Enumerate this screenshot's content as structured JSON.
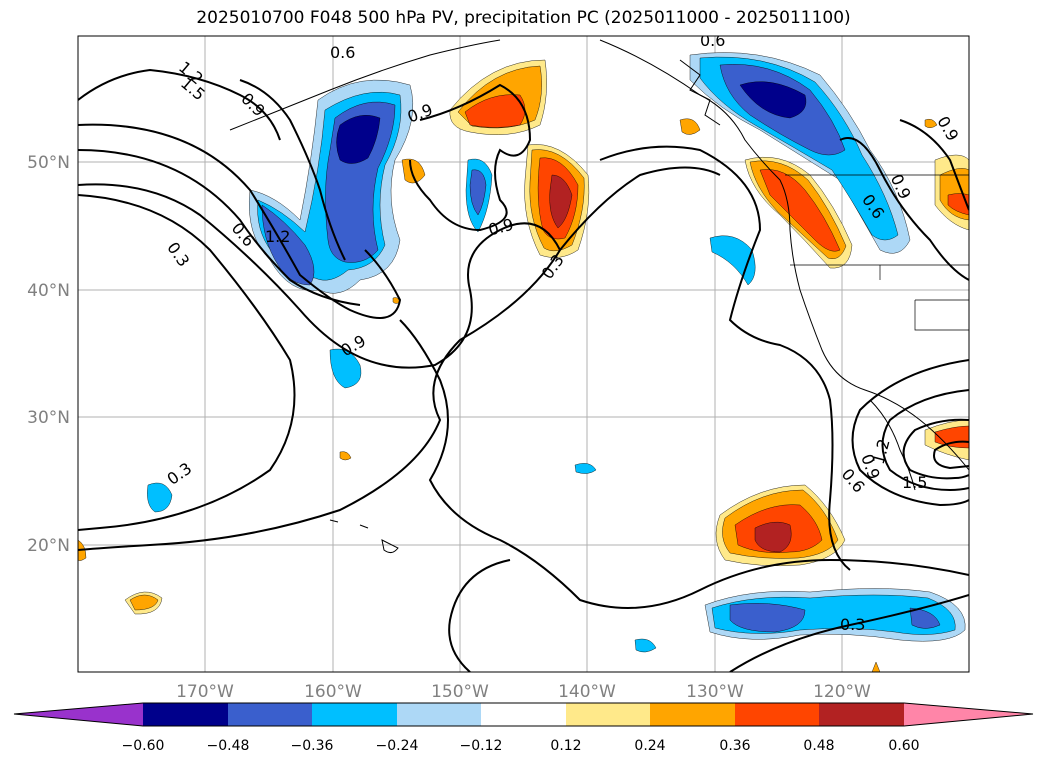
{
  "title": "2025010700 F048 500 hPa PV, precipitation PC (2025011000 - 2025011100)",
  "colors": {
    "neg_060": "#9932cc",
    "neg_048": "#00008b",
    "neg_036": "#3a5fcd",
    "neg_024": "#00bfff",
    "neg_012": "#add8f6",
    "neutral": "#ffffff",
    "pos_012": "#ffe98a",
    "pos_024": "#ffa500",
    "pos_036": "#ff4500",
    "pos_048": "#b22222",
    "pos_060": "#ff85a8",
    "grid": "#b0b0b0",
    "axis_text": "#808080"
  },
  "axes": {
    "lon_ticks": [
      "170°W",
      "160°W",
      "150°W",
      "140°W",
      "130°W",
      "120°W"
    ],
    "lat_ticks": [
      "50°N",
      "40°N",
      "30°N",
      "20°N"
    ]
  },
  "colorbar": {
    "ticks": [
      "−0.60",
      "−0.48",
      "−0.36",
      "−0.24",
      "−0.12",
      "0.12",
      "0.24",
      "0.36",
      "0.48",
      "0.60"
    ]
  },
  "contour_labels": [
    "0.6",
    "1.2",
    "1.5",
    "0.9",
    "0.9",
    "0.9",
    "0.9",
    "0.3",
    "1.2",
    "0.6",
    "0.3",
    "0.9",
    "0.3",
    "0.3",
    "0.6",
    "0.6",
    "0.9",
    "1.2",
    "0.9",
    "0.6",
    "1.5",
    "0.3"
  ]
}
